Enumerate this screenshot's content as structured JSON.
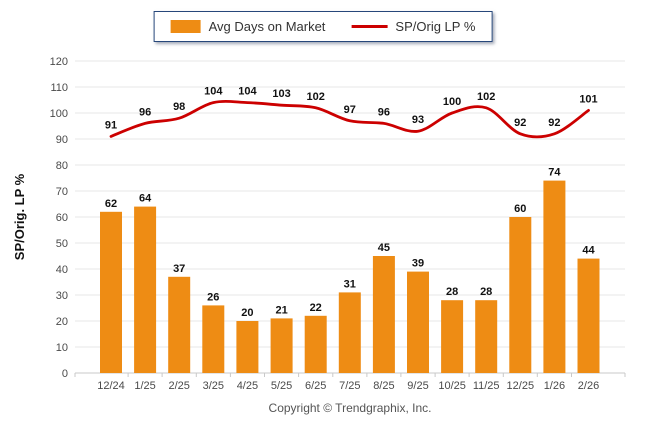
{
  "legend": {
    "bar_label": "Avg Days on Market",
    "line_label": "SP/Orig LP %"
  },
  "footer": {
    "copyright": "Copyright © Trendgraphix, Inc."
  },
  "colors": {
    "bar": "#EE8C14",
    "line": "#CC0000",
    "value_label": "#111111",
    "tick_label": "#4a4a4a",
    "grid": "#e7e7e7",
    "baseline": "#c9c9c9",
    "axis_title": "#111111"
  },
  "chart_data": {
    "type": "bar+line",
    "title": "",
    "xlabel": "",
    "ylabel": "SP/Orig. LP %",
    "ylim": [
      0,
      120
    ],
    "ytick_step": 10,
    "grid": true,
    "legend_position": "top",
    "categories": [
      "12/24",
      "1/25",
      "2/25",
      "3/25",
      "4/25",
      "5/25",
      "6/25",
      "7/25",
      "8/25",
      "9/25",
      "10/25",
      "11/25",
      "12/25",
      "1/26",
      "2/26"
    ],
    "series": [
      {
        "name": "Avg Days on Market",
        "type": "bar",
        "values": [
          62,
          64,
          37,
          26,
          20,
          21,
          22,
          31,
          45,
          39,
          28,
          28,
          60,
          74,
          44
        ]
      },
      {
        "name": "SP/Orig LP %",
        "type": "line",
        "values": [
          91,
          96,
          98,
          104,
          104,
          103,
          102,
          97,
          96,
          93,
          100,
          102,
          92,
          92,
          101
        ]
      }
    ]
  }
}
